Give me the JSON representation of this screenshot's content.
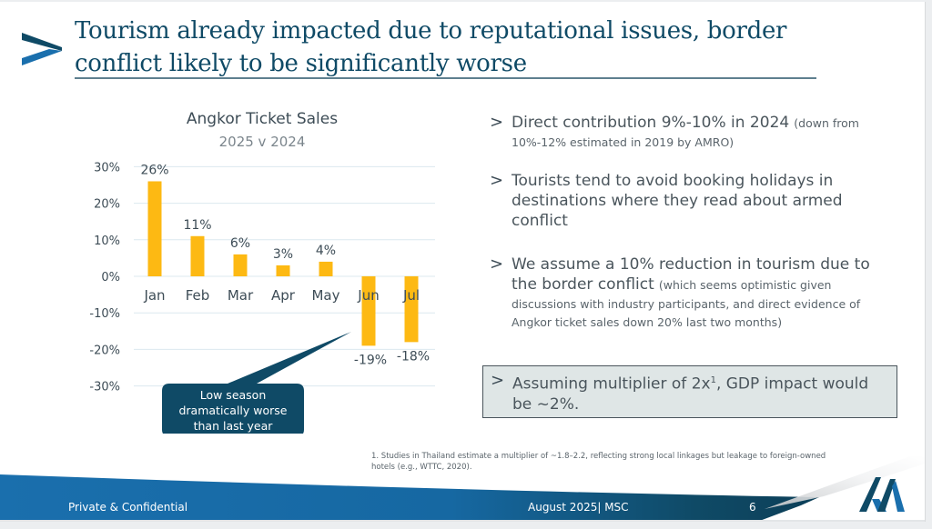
{
  "slide": {
    "title_line1": "Tourism already impacted due to reputational issues, border",
    "title_line2": "conflict likely to be significantly worse",
    "brand_colors": {
      "navy": "#0f4a66",
      "blue": "#1a6fad",
      "bar": "#fdb913",
      "callout": "#0f4a66"
    }
  },
  "chart_data": {
    "type": "bar",
    "title": "Angkor Ticket Sales",
    "subtitle": "2025 v 2024",
    "categories": [
      "Jan",
      "Feb",
      "Mar",
      "Apr",
      "May",
      "Jun",
      "Jul"
    ],
    "values": [
      26,
      11,
      6,
      3,
      4,
      -19,
      -18
    ],
    "data_labels": [
      "26%",
      "11%",
      "6%",
      "3%",
      "4%",
      "-19%",
      "-18%"
    ],
    "unit": "%",
    "ylim": [
      -30,
      30
    ],
    "yticks": [
      30,
      20,
      10,
      0,
      -10,
      -20,
      -30
    ],
    "ytick_labels": [
      "30%",
      "20%",
      "10%",
      "0%",
      "-10%",
      "-20%",
      "-30%"
    ],
    "grid": true,
    "xlabel": "",
    "ylabel": "",
    "annotation": {
      "lines": [
        "Low season",
        "dramatically worse",
        "than last year"
      ],
      "points_to": "Jun"
    }
  },
  "bullets": [
    {
      "main": "Direct contribution 9%-10% in 2024",
      "small": "(down from 10%-12% estimated in 2019 by AMRO)"
    },
    {
      "main": "Tourists tend to avoid booking holidays in destinations where they read about armed conflict",
      "small": ""
    },
    {
      "main": "We assume a 10% reduction in tourism due to the border conflict",
      "small": "(which seems optimistic given discussions with industry participants, and direct evidence of Angkor ticket sales down 20% last two months)"
    }
  ],
  "highlight_box": {
    "text_before": "Assuming multiplier of 2x",
    "superscript": "1",
    "text_after": ", GDP impact would be ~2%."
  },
  "footnote": "1. Studies in Thailand estimate a multiplier of ~1.8–2.2, reflecting strong local linkages but leakage to foreign-owned hotels (e.g., WTTC, 2020).",
  "footer": {
    "left": "Private & Confidential",
    "date": "August 2025| MSC",
    "page": "6"
  },
  "icons": {
    "title_chevron": "chevron-right-logo-icon",
    "brand_logo": "m-logo-icon",
    "bullet": "chevron-right-icon"
  }
}
